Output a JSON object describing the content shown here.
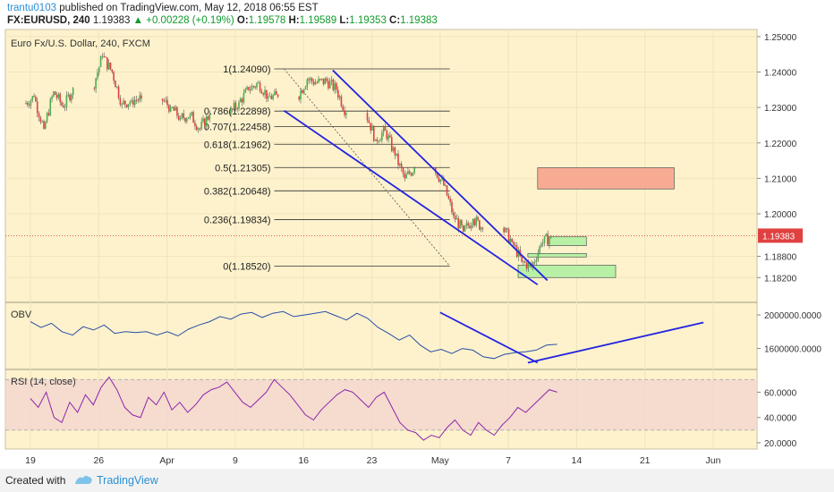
{
  "header": {
    "author": "trantu0103",
    "published_text": "published on TradingView.com, May 12, 2018 06:55 EST",
    "symbol": "FX:EURUSD, 240",
    "last": "1.19383",
    "change": "+0.00228 (+0.19%)",
    "o_label": "O:",
    "o_value": "1.19578",
    "h_label": "H:",
    "h_value": "1.19589",
    "l_label": "L:",
    "l_value": "1.19353",
    "c_label": "C:",
    "c_value": "1.19383"
  },
  "colors": {
    "background": "#fdf2cc",
    "bull": "#4caf50",
    "bear": "#e04040",
    "channel": "#2323e0",
    "indicator": "#2a4ea8",
    "rsi": "#8e24aa",
    "resistance_box": "#f8ab93",
    "support_box": "#b8f1a6"
  },
  "chart_data": [
    {
      "type": "candlestick",
      "title": "Euro Fx/U.S. Dollar, 240, FXCM",
      "x_ticks": [
        "19",
        "26",
        "Apr",
        "9",
        "16",
        "23",
        "May",
        "7",
        "14",
        "21",
        "Jun"
      ],
      "y_ticks": [
        "1.25000",
        "1.24000",
        "1.23000",
        "1.22000",
        "1.21000",
        "1.20000",
        "1.18800",
        "1.18200"
      ],
      "ylim": [
        1.175,
        1.252
      ],
      "last_price": "1.19383",
      "daily_closes": [
        {
          "date": "2018-03-19",
          "close": 1.233
        },
        {
          "date": "2018-03-20",
          "close": 1.224
        },
        {
          "date": "2018-03-21",
          "close": 1.2345
        },
        {
          "date": "2018-03-22",
          "close": 1.23
        },
        {
          "date": "2018-03-23",
          "close": 1.2355
        },
        {
          "date": "2018-03-26",
          "close": 1.2445
        },
        {
          "date": "2018-03-27",
          "close": 1.24
        },
        {
          "date": "2018-03-28",
          "close": 1.231
        },
        {
          "date": "2018-03-29",
          "close": 1.232
        },
        {
          "date": "2018-03-30",
          "close": 1.2325
        },
        {
          "date": "2018-04-02",
          "close": 1.23
        },
        {
          "date": "2018-04-03",
          "close": 1.227
        },
        {
          "date": "2018-04-04",
          "close": 1.228
        },
        {
          "date": "2018-04-05",
          "close": 1.224
        },
        {
          "date": "2018-04-06",
          "close": 1.228
        },
        {
          "date": "2018-04-09",
          "close": 1.2315
        },
        {
          "date": "2018-04-10",
          "close": 1.235
        },
        {
          "date": "2018-04-11",
          "close": 1.237
        },
        {
          "date": "2018-04-12",
          "close": 1.233
        },
        {
          "date": "2018-04-13",
          "close": 1.233
        },
        {
          "date": "2018-04-16",
          "close": 1.238
        },
        {
          "date": "2018-04-17",
          "close": 1.237
        },
        {
          "date": "2018-04-18",
          "close": 1.2375
        },
        {
          "date": "2018-04-19",
          "close": 1.235
        },
        {
          "date": "2018-04-20",
          "close": 1.2285
        },
        {
          "date": "2018-04-23",
          "close": 1.221
        },
        {
          "date": "2018-04-24",
          "close": 1.2235
        },
        {
          "date": "2018-04-25",
          "close": 1.2165
        },
        {
          "date": "2018-04-26",
          "close": 1.21
        },
        {
          "date": "2018-04-27",
          "close": 1.213
        },
        {
          "date": "2018-04-30",
          "close": 1.208
        },
        {
          "date": "2018-05-01",
          "close": 1.1995
        },
        {
          "date": "2018-05-02",
          "close": 1.195
        },
        {
          "date": "2018-05-03",
          "close": 1.1985
        },
        {
          "date": "2018-05-04",
          "close": 1.196
        },
        {
          "date": "2018-05-07",
          "close": 1.192
        },
        {
          "date": "2018-05-08",
          "close": 1.1865
        },
        {
          "date": "2018-05-09",
          "close": 1.185
        },
        {
          "date": "2018-05-10",
          "close": 1.1915
        },
        {
          "date": "2018-05-11",
          "close": 1.1938
        }
      ],
      "fibonacci": [
        {
          "label": "1(1.24090)",
          "level": 1.2409
        },
        {
          "label": "0.786(1.22898)",
          "level": 1.22898
        },
        {
          "label": "0.707(1.22458)",
          "level": 1.22458
        },
        {
          "label": "0.618(1.21962)",
          "level": 1.21962
        },
        {
          "label": "0.5(1.21305)",
          "level": 1.21305
        },
        {
          "label": "0.382(1.20648)",
          "level": 1.20648
        },
        {
          "label": "0.236(1.19834)",
          "level": 1.19834
        },
        {
          "label": "0(1.18520)",
          "level": 1.1852
        }
      ],
      "zones": [
        {
          "kind": "resistance",
          "from_date": "2018-05-10",
          "to_date": "2018-05-24",
          "low": 1.207,
          "high": 1.213
        },
        {
          "kind": "support",
          "from_date": "2018-05-11",
          "to_date": "2018-05-15",
          "low": 1.191,
          "high": 1.1935
        },
        {
          "kind": "support",
          "from_date": "2018-05-09",
          "to_date": "2018-05-15",
          "low": 1.1878,
          "high": 1.1888
        },
        {
          "kind": "support",
          "from_date": "2018-05-08",
          "to_date": "2018-05-18",
          "low": 1.182,
          "high": 1.1855
        }
      ],
      "channel": [
        {
          "from_date": "2018-04-19",
          "from_price": 1.2405,
          "to_date": "2018-05-11",
          "to_price": 1.1812
        },
        {
          "from_date": "2018-04-14",
          "from_price": 1.2291,
          "to_date": "2018-05-10",
          "to_price": 1.18
        }
      ]
    },
    {
      "type": "line",
      "title": "OBV",
      "y_ticks": [
        "2000000.0000",
        "1600000.0000"
      ],
      "ylim": [
        1350000,
        2150000
      ],
      "values": [
        1920000,
        1850000,
        1900000,
        1800000,
        1760000,
        1860000,
        1820000,
        1880000,
        1780000,
        1800000,
        1790000,
        1800000,
        1760000,
        1800000,
        1750000,
        1830000,
        1880000,
        1920000,
        1980000,
        1950000,
        2010000,
        2030000,
        1970000,
        2020000,
        2040000,
        1980000,
        2000000,
        2020000,
        2040000,
        1990000,
        1940000,
        2020000,
        1960000,
        1850000,
        1780000,
        1700000,
        1760000,
        1640000,
        1560000,
        1590000,
        1540000,
        1600000,
        1580000,
        1500000,
        1480000,
        1530000,
        1550000,
        1560000,
        1580000,
        1640000,
        1650000
      ],
      "trendlines": [
        {
          "from_date": "2018-04-30",
          "from_value": 2030000,
          "to_date": "2018-05-10",
          "to_value": 1430000
        },
        {
          "from_date": "2018-05-09",
          "from_value": 1430000,
          "to_date": "2018-05-27",
          "to_value": 1910000
        }
      ]
    },
    {
      "type": "line",
      "title": "RSI (14, close)",
      "y_ticks": [
        "60.0000",
        "40.0000",
        "20.0000"
      ],
      "ylim": [
        15,
        78
      ],
      "bands": [
        30,
        70
      ],
      "values": [
        55,
        48,
        60,
        40,
        36,
        52,
        44,
        58,
        50,
        64,
        72,
        62,
        48,
        42,
        40,
        56,
        50,
        60,
        46,
        52,
        44,
        50,
        58,
        62,
        64,
        68,
        60,
        52,
        48,
        54,
        60,
        70,
        64,
        58,
        50,
        42,
        38,
        46,
        52,
        58,
        62,
        60,
        54,
        48,
        56,
        60,
        48,
        36,
        30,
        28,
        22,
        26,
        24,
        32,
        38,
        30,
        26,
        36,
        30,
        26,
        34,
        40,
        48,
        44,
        50,
        56,
        62,
        60
      ]
    }
  ]
}
